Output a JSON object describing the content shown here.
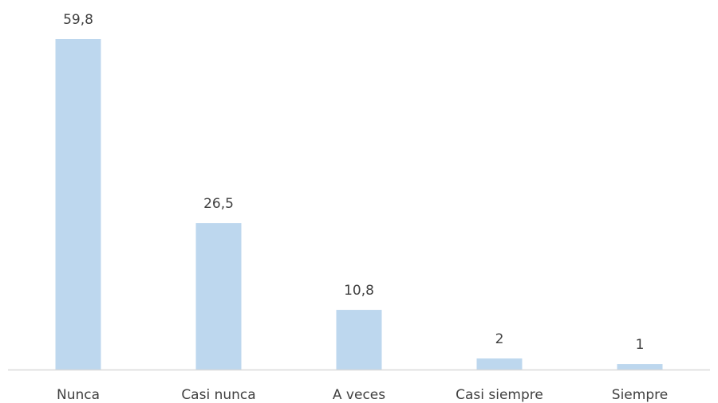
{
  "chart_data": {
    "type": "bar",
    "categories": [
      "Nunca",
      "Casi nunca",
      "A veces",
      "Casi siempre",
      "Siempre"
    ],
    "values": [
      59.8,
      26.5,
      10.8,
      2,
      1
    ],
    "value_labels": [
      "59,8",
      "26,5",
      "10,8",
      "2",
      "1"
    ],
    "title": "",
    "xlabel": "",
    "ylabel": "",
    "ylim": [
      0,
      59.8
    ],
    "grid": false,
    "legend": "none",
    "bar_color": "#BDD7EE",
    "axis_color": "#D9D9D9",
    "text_color": "#404040"
  }
}
